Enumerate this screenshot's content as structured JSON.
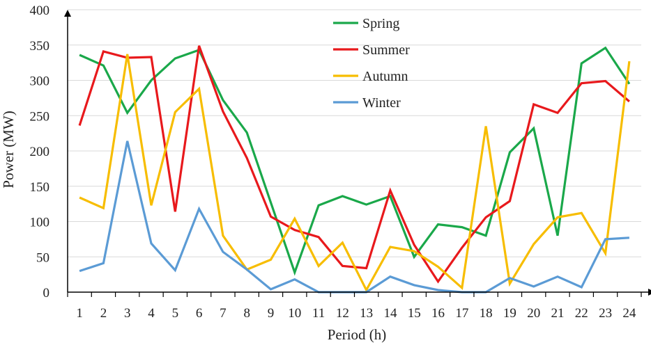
{
  "chart_data": {
    "type": "line",
    "xlabel": "Period (h)",
    "ylabel": "Power (MW)",
    "ylim": [
      0,
      400
    ],
    "yticks": [
      0,
      50,
      100,
      150,
      200,
      250,
      300,
      350,
      400
    ],
    "x": [
      "1",
      "2",
      "3",
      "4",
      "5",
      "6",
      "7",
      "8",
      "9",
      "10",
      "11",
      "12",
      "13",
      "14",
      "15",
      "16",
      "17",
      "18",
      "19",
      "20",
      "21",
      "22",
      "23",
      "24"
    ],
    "grid": "horizontal",
    "legend_position": "top-center",
    "series": [
      {
        "name": "Spring",
        "color": "#1aa84a",
        "values": [
          336,
          321,
          254,
          300,
          331,
          343,
          272,
          226,
          127,
          28,
          123,
          136,
          124,
          136,
          50,
          96,
          92,
          80,
          198,
          232,
          80,
          324,
          346,
          295
        ]
      },
      {
        "name": "Summer",
        "color": "#e8191c",
        "values": [
          236,
          341,
          332,
          333,
          114,
          349,
          256,
          190,
          107,
          88,
          78,
          37,
          34,
          144,
          67,
          15,
          63,
          106,
          129,
          266,
          254,
          296,
          299,
          270
        ]
      },
      {
        "name": "Autumn",
        "color": "#f7bd00",
        "values": [
          134,
          119,
          337,
          123,
          255,
          288,
          80,
          32,
          46,
          104,
          37,
          70,
          3,
          64,
          58,
          36,
          6,
          235,
          12,
          68,
          106,
          112,
          55,
          327
        ]
      },
      {
        "name": "Winter",
        "color": "#5b9bd5",
        "values": [
          30,
          41,
          214,
          69,
          31,
          118,
          57,
          32,
          4,
          18,
          0,
          0,
          0,
          22,
          10,
          3,
          0,
          0,
          20,
          8,
          22,
          7,
          75,
          77
        ]
      }
    ]
  }
}
